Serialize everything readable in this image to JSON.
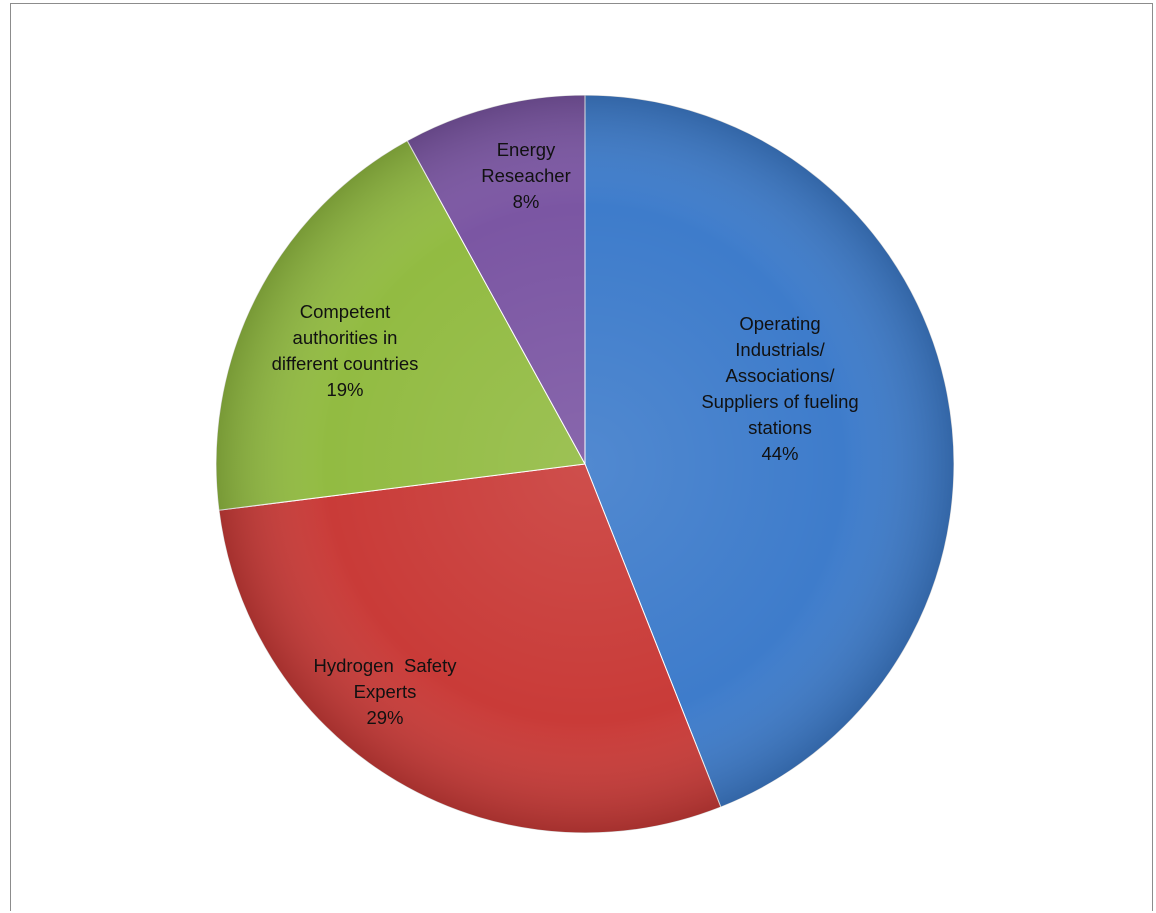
{
  "chart_data": {
    "type": "pie",
    "title": "",
    "slices": [
      {
        "label_lines": [
          "Operating",
          "Industrials/",
          "Associations/",
          "Suppliers of fueling",
          "stations"
        ],
        "percent_label": "44%",
        "value": 44,
        "color": "#3e7ccb"
      },
      {
        "label_lines": [
          "Hydrogen  Safety",
          "Experts"
        ],
        "percent_label": "29%",
        "value": 29,
        "color": "#c93b38"
      },
      {
        "label_lines": [
          "Competent",
          "authorities in",
          "different countries"
        ],
        "percent_label": "19%",
        "value": 19,
        "color": "#92bb42"
      },
      {
        "label_lines": [
          "Energy",
          "Reseacher"
        ],
        "percent_label": "8%",
        "value": 8,
        "color": "#7b56a3"
      }
    ],
    "legend": "none",
    "start_angle_deg": 0,
    "direction": "clockwise"
  }
}
